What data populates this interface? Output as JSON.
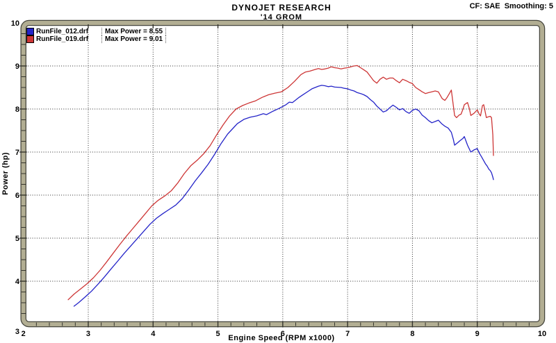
{
  "colors": {
    "background": "#ffffff",
    "frame_fill": "#b2ae93",
    "frame_edge": "#45453c",
    "grid": "#2a2a2a",
    "tick": "#33332c",
    "text": "#000000",
    "blue_series": "#2323c8",
    "red_series": "#cd3535"
  },
  "chart_data": {
    "type": "line",
    "title": "DYNOJET RESEARCH",
    "subtitle": "'14 GROM",
    "annotation_top_right": "CF: SAE  Smoothing: 5",
    "xlabel": "Engine Speed (RPM x1000)",
    "ylabel": "Power (hp)",
    "xlim": [
      2,
      10
    ],
    "ylim": [
      3,
      10
    ],
    "x_major_ticks": [
      2,
      3,
      4,
      5,
      6,
      7,
      8,
      9,
      10
    ],
    "y_major_ticks": [
      3,
      4,
      5,
      6,
      7,
      8,
      9,
      10
    ],
    "x_minor_step": 0.2,
    "y_minor_step": 0.25,
    "grid": "dotted-at-major-ticks",
    "legend_position": "top-left",
    "series": [
      {
        "name": "RunFile_012.drf",
        "legend_value": "Max Power = 8.55",
        "max_power": 8.55,
        "color": "#2323c8",
        "points": [
          [
            2.78,
            3.42
          ],
          [
            2.85,
            3.5
          ],
          [
            2.95,
            3.63
          ],
          [
            3.05,
            3.77
          ],
          [
            3.15,
            3.93
          ],
          [
            3.25,
            4.1
          ],
          [
            3.35,
            4.28
          ],
          [
            3.45,
            4.46
          ],
          [
            3.55,
            4.64
          ],
          [
            3.65,
            4.81
          ],
          [
            3.75,
            4.98
          ],
          [
            3.85,
            5.15
          ],
          [
            3.95,
            5.32
          ],
          [
            4.05,
            5.46
          ],
          [
            4.15,
            5.57
          ],
          [
            4.25,
            5.67
          ],
          [
            4.35,
            5.77
          ],
          [
            4.45,
            5.92
          ],
          [
            4.55,
            6.12
          ],
          [
            4.65,
            6.33
          ],
          [
            4.75,
            6.52
          ],
          [
            4.85,
            6.72
          ],
          [
            4.95,
            6.95
          ],
          [
            5.05,
            7.2
          ],
          [
            5.15,
            7.42
          ],
          [
            5.25,
            7.58
          ],
          [
            5.3,
            7.66
          ],
          [
            5.4,
            7.76
          ],
          [
            5.5,
            7.81
          ],
          [
            5.6,
            7.84
          ],
          [
            5.7,
            7.89
          ],
          [
            5.75,
            7.87
          ],
          [
            5.85,
            7.95
          ],
          [
            5.95,
            8.02
          ],
          [
            6.05,
            8.1
          ],
          [
            6.1,
            8.16
          ],
          [
            6.15,
            8.15
          ],
          [
            6.25,
            8.27
          ],
          [
            6.3,
            8.32
          ],
          [
            6.4,
            8.42
          ],
          [
            6.45,
            8.47
          ],
          [
            6.5,
            8.5
          ],
          [
            6.55,
            8.53
          ],
          [
            6.6,
            8.55
          ],
          [
            6.65,
            8.54
          ],
          [
            6.7,
            8.52
          ],
          [
            6.75,
            8.53
          ],
          [
            6.8,
            8.51
          ],
          [
            6.9,
            8.5
          ],
          [
            6.95,
            8.48
          ],
          [
            7.0,
            8.47
          ],
          [
            7.05,
            8.44
          ],
          [
            7.1,
            8.42
          ],
          [
            7.15,
            8.38
          ],
          [
            7.2,
            8.36
          ],
          [
            7.25,
            8.33
          ],
          [
            7.3,
            8.29
          ],
          [
            7.35,
            8.22
          ],
          [
            7.4,
            8.16
          ],
          [
            7.45,
            8.07
          ],
          [
            7.5,
            8.0
          ],
          [
            7.55,
            7.93
          ],
          [
            7.6,
            7.96
          ],
          [
            7.65,
            8.03
          ],
          [
            7.7,
            8.09
          ],
          [
            7.75,
            8.04
          ],
          [
            7.8,
            7.98
          ],
          [
            7.85,
            8.01
          ],
          [
            7.9,
            7.94
          ],
          [
            7.95,
            7.9
          ],
          [
            8.0,
            7.97
          ],
          [
            8.05,
            8.0
          ],
          [
            8.1,
            7.96
          ],
          [
            8.15,
            7.86
          ],
          [
            8.2,
            7.8
          ],
          [
            8.25,
            7.73
          ],
          [
            8.3,
            7.68
          ],
          [
            8.35,
            7.71
          ],
          [
            8.4,
            7.74
          ],
          [
            8.45,
            7.66
          ],
          [
            8.5,
            7.6
          ],
          [
            8.55,
            7.56
          ],
          [
            8.6,
            7.46
          ],
          [
            8.63,
            7.3
          ],
          [
            8.65,
            7.16
          ],
          [
            8.7,
            7.22
          ],
          [
            8.73,
            7.26
          ],
          [
            8.78,
            7.32
          ],
          [
            8.8,
            7.36
          ],
          [
            8.85,
            7.16
          ],
          [
            8.9,
            7.0
          ],
          [
            8.95,
            7.05
          ],
          [
            9.0,
            7.08
          ],
          [
            9.03,
            6.98
          ],
          [
            9.07,
            6.88
          ],
          [
            9.1,
            6.8
          ],
          [
            9.13,
            6.72
          ],
          [
            9.15,
            6.68
          ],
          [
            9.18,
            6.6
          ],
          [
            9.2,
            6.57
          ],
          [
            9.22,
            6.52
          ],
          [
            9.24,
            6.42
          ],
          [
            9.25,
            6.36
          ]
        ]
      },
      {
        "name": "RunFile_019.drf",
        "legend_value": "Max Power = 9.01",
        "max_power": 9.01,
        "color": "#cd3535",
        "points": [
          [
            2.69,
            3.57
          ],
          [
            2.78,
            3.7
          ],
          [
            2.88,
            3.82
          ],
          [
            2.98,
            3.94
          ],
          [
            3.08,
            4.08
          ],
          [
            3.18,
            4.25
          ],
          [
            3.28,
            4.44
          ],
          [
            3.38,
            4.64
          ],
          [
            3.48,
            4.84
          ],
          [
            3.58,
            5.03
          ],
          [
            3.68,
            5.21
          ],
          [
            3.78,
            5.39
          ],
          [
            3.88,
            5.57
          ],
          [
            3.98,
            5.75
          ],
          [
            4.08,
            5.88
          ],
          [
            4.18,
            5.98
          ],
          [
            4.28,
            6.1
          ],
          [
            4.38,
            6.28
          ],
          [
            4.48,
            6.5
          ],
          [
            4.58,
            6.68
          ],
          [
            4.68,
            6.81
          ],
          [
            4.78,
            6.96
          ],
          [
            4.88,
            7.15
          ],
          [
            4.98,
            7.4
          ],
          [
            5.08,
            7.63
          ],
          [
            5.18,
            7.84
          ],
          [
            5.28,
            8.0
          ],
          [
            5.38,
            8.08
          ],
          [
            5.48,
            8.14
          ],
          [
            5.58,
            8.19
          ],
          [
            5.68,
            8.27
          ],
          [
            5.78,
            8.33
          ],
          [
            5.88,
            8.37
          ],
          [
            5.98,
            8.4
          ],
          [
            6.08,
            8.5
          ],
          [
            6.18,
            8.64
          ],
          [
            6.28,
            8.8
          ],
          [
            6.35,
            8.86
          ],
          [
            6.42,
            8.88
          ],
          [
            6.5,
            8.92
          ],
          [
            6.55,
            8.94
          ],
          [
            6.6,
            8.92
          ],
          [
            6.65,
            8.93
          ],
          [
            6.7,
            8.95
          ],
          [
            6.75,
            8.98
          ],
          [
            6.8,
            8.96
          ],
          [
            6.85,
            8.95
          ],
          [
            6.9,
            8.93
          ],
          [
            6.95,
            8.95
          ],
          [
            7.0,
            8.96
          ],
          [
            7.05,
            8.98
          ],
          [
            7.1,
            9.0
          ],
          [
            7.15,
            9.01
          ],
          [
            7.2,
            8.96
          ],
          [
            7.25,
            8.91
          ],
          [
            7.3,
            8.86
          ],
          [
            7.35,
            8.76
          ],
          [
            7.4,
            8.66
          ],
          [
            7.45,
            8.6
          ],
          [
            7.5,
            8.69
          ],
          [
            7.55,
            8.74
          ],
          [
            7.6,
            8.69
          ],
          [
            7.65,
            8.72
          ],
          [
            7.7,
            8.72
          ],
          [
            7.75,
            8.66
          ],
          [
            7.8,
            8.61
          ],
          [
            7.85,
            8.69
          ],
          [
            7.9,
            8.66
          ],
          [
            7.95,
            8.62
          ],
          [
            8.0,
            8.59
          ],
          [
            8.05,
            8.5
          ],
          [
            8.1,
            8.45
          ],
          [
            8.15,
            8.4
          ],
          [
            8.2,
            8.36
          ],
          [
            8.25,
            8.38
          ],
          [
            8.3,
            8.4
          ],
          [
            8.35,
            8.42
          ],
          [
            8.4,
            8.4
          ],
          [
            8.43,
            8.32
          ],
          [
            8.46,
            8.24
          ],
          [
            8.5,
            8.2
          ],
          [
            8.53,
            8.26
          ],
          [
            8.57,
            8.36
          ],
          [
            8.6,
            8.44
          ],
          [
            8.62,
            8.2
          ],
          [
            8.65,
            7.85
          ],
          [
            8.68,
            7.8
          ],
          [
            8.72,
            7.86
          ],
          [
            8.75,
            7.88
          ],
          [
            8.78,
            8.0
          ],
          [
            8.8,
            8.1
          ],
          [
            8.85,
            8.15
          ],
          [
            8.88,
            8.0
          ],
          [
            8.9,
            7.85
          ],
          [
            8.95,
            7.9
          ],
          [
            9.0,
            7.98
          ],
          [
            9.03,
            7.88
          ],
          [
            9.05,
            7.84
          ],
          [
            9.08,
            8.08
          ],
          [
            9.1,
            8.1
          ],
          [
            9.12,
            7.95
          ],
          [
            9.14,
            7.8
          ],
          [
            9.17,
            7.82
          ],
          [
            9.2,
            7.83
          ],
          [
            9.22,
            7.8
          ],
          [
            9.24,
            7.4
          ],
          [
            9.25,
            6.92
          ]
        ]
      }
    ]
  }
}
